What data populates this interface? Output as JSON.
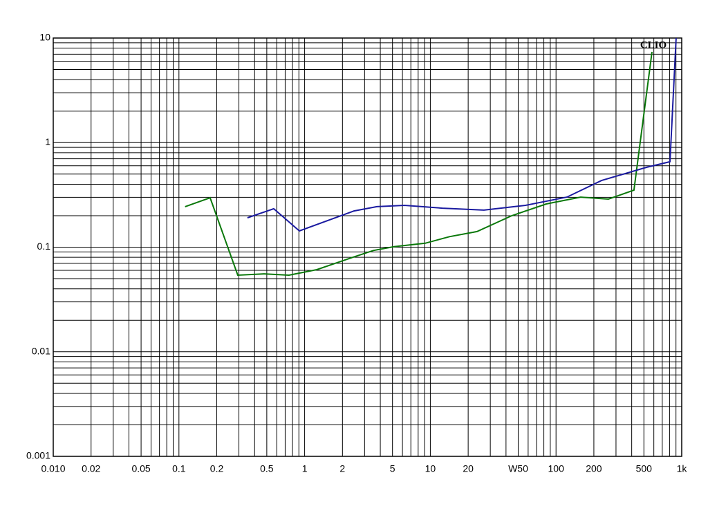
{
  "chart_data": {
    "type": "line",
    "annotation": "CLIO",
    "xscale": "log",
    "yscale": "log",
    "grid": true,
    "xlim": [
      0.01,
      1000
    ],
    "ylim": [
      0.001,
      10
    ],
    "xticks": [
      {
        "value": 0.01,
        "label": "0.010"
      },
      0.02,
      0.05,
      0.1,
      0.2,
      0.5,
      1,
      2,
      5,
      10,
      20,
      {
        "value": 50,
        "label": "W50"
      },
      100,
      200,
      500,
      {
        "value": 1000,
        "label": "1k"
      }
    ],
    "yticks": [
      0.001,
      0.01,
      0.1,
      1,
      10
    ],
    "x_minor_grid": [
      0.03,
      0.04,
      0.06,
      0.07,
      0.08,
      0.09,
      0.3,
      0.4,
      0.6,
      0.7,
      0.8,
      0.9,
      3,
      4,
      6,
      7,
      8,
      9,
      30,
      40,
      60,
      70,
      80,
      90,
      300,
      400,
      600,
      700,
      800,
      900
    ],
    "y_minor_grid": [
      0.002,
      0.003,
      0.004,
      0.005,
      0.006,
      0.007,
      0.008,
      0.009,
      0.02,
      0.03,
      0.04,
      0.05,
      0.06,
      0.07,
      0.08,
      0.09,
      0.2,
      0.3,
      0.4,
      0.5,
      0.6,
      0.7,
      0.8,
      0.9,
      2,
      3,
      4,
      5,
      6,
      7,
      8,
      9
    ],
    "series": [
      {
        "color": "#0a780a",
        "x": [
          0.112,
          0.177,
          0.294,
          0.476,
          0.751,
          1.25,
          2.41,
          3.52,
          5.15,
          9.1,
          14.2,
          23.5,
          44.4,
          83.5,
          157,
          261,
          417,
          580
        ],
        "values": [
          0.244,
          0.297,
          0.054,
          0.0556,
          0.054,
          0.061,
          0.08,
          0.093,
          0.101,
          0.109,
          0.126,
          0.141,
          0.2,
          0.259,
          0.301,
          0.288,
          0.351,
          7.38
        ]
      },
      {
        "color": "#1a1aa0",
        "x": [
          0.351,
          0.568,
          0.908,
          2.47,
          3.75,
          6.23,
          12.5,
          26.7,
          57.1,
          122,
          230,
          524,
          806,
          903
        ],
        "values": [
          0.191,
          0.233,
          0.143,
          0.222,
          0.244,
          0.251,
          0.236,
          0.226,
          0.251,
          0.301,
          0.434,
          0.58,
          0.656,
          10
        ]
      }
    ]
  }
}
